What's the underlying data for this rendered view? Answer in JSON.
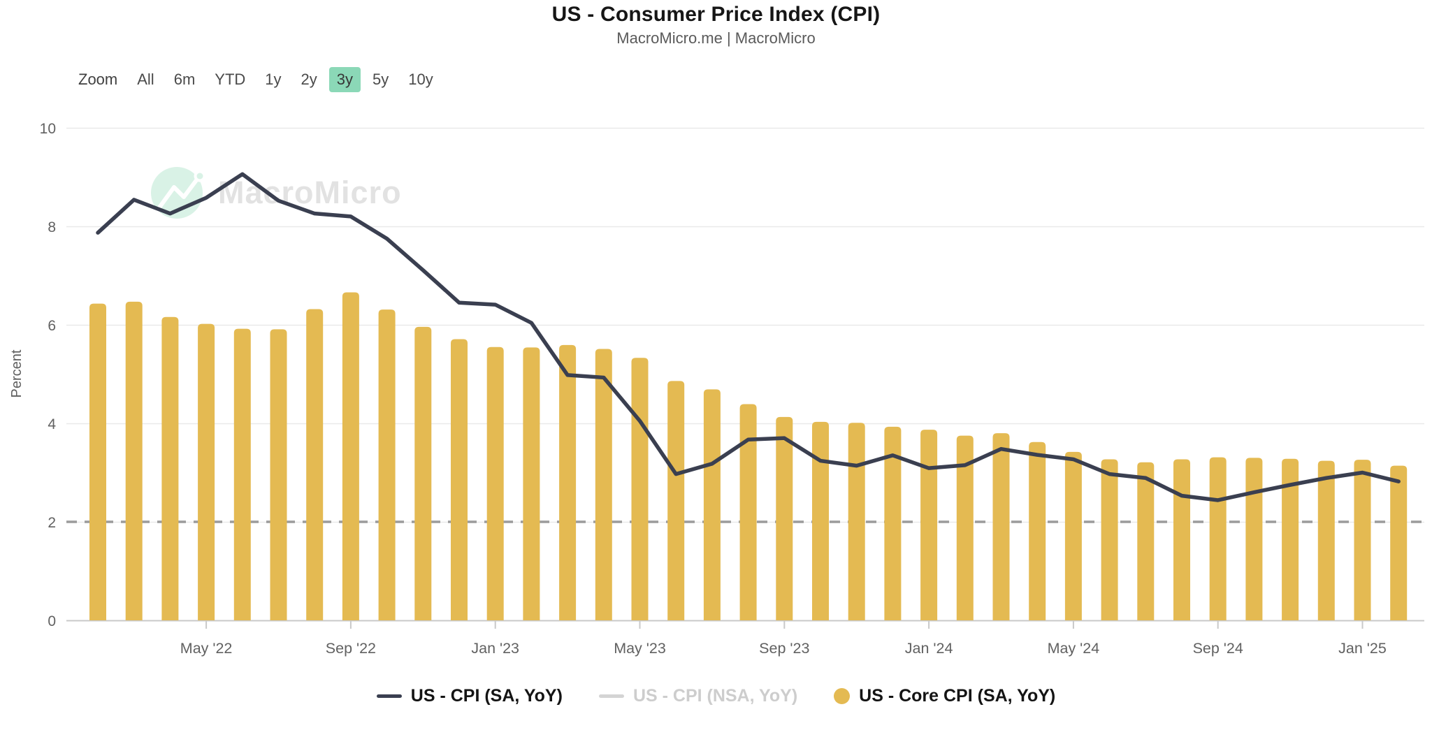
{
  "header": {
    "title": "US - Consumer Price Index (CPI)",
    "subtitle": "MacroMicro.me | MacroMicro"
  },
  "range_selector": {
    "zoom_label": "Zoom",
    "buttons": [
      "All",
      "6m",
      "YTD",
      "1y",
      "2y",
      "3y",
      "5y",
      "10y"
    ],
    "selected": "3y",
    "selected_bg_color": "#8bd8b7"
  },
  "watermark": {
    "text": "MacroMicro",
    "circle_color": "#d9f2e6",
    "text_color": "#e2e2e2"
  },
  "y_axis": {
    "title": "Percent",
    "ticks": [
      0,
      2,
      4,
      6,
      8,
      10
    ],
    "reference_line_value": 2
  },
  "x_axis": {
    "tick_labels": [
      "May '22",
      "Sep '22",
      "Jan '23",
      "May '23",
      "Sep '23",
      "Jan '24",
      "May '24",
      "Sep '24",
      "Jan '25"
    ]
  },
  "legend": [
    {
      "label": "US - CPI (SA, YoY)",
      "marker": "dash",
      "color": "#3a3f50",
      "enabled": true
    },
    {
      "label": "US - CPI (NSA, YoY)",
      "marker": "dash",
      "color": "#d4d4d4",
      "enabled": false
    },
    {
      "label": "US - Core CPI (SA, YoY)",
      "marker": "circle",
      "color": "#e4ba52",
      "enabled": true
    }
  ],
  "chart_data": {
    "type": "mixed",
    "title": "US - Consumer Price Index (CPI)",
    "ylabel": "Percent",
    "ylim": [
      0,
      10
    ],
    "grid": true,
    "reference_line": 2,
    "legend_position": "bottom",
    "categories": [
      "Feb '22",
      "Mar '22",
      "Apr '22",
      "May '22",
      "Jun '22",
      "Jul '22",
      "Aug '22",
      "Sep '22",
      "Oct '22",
      "Nov '22",
      "Dec '22",
      "Jan '23",
      "Feb '23",
      "Mar '23",
      "Apr '23",
      "May '23",
      "Jun '23",
      "Jul '23",
      "Aug '23",
      "Sep '23",
      "Oct '23",
      "Nov '23",
      "Dec '23",
      "Jan '24",
      "Feb '24",
      "Mar '24",
      "Apr '24",
      "May '24",
      "Jun '24",
      "Jul '24",
      "Aug '24",
      "Sep '24",
      "Oct '24",
      "Nov '24",
      "Dec '24",
      "Jan '25",
      "Feb '25"
    ],
    "series": [
      {
        "name": "US - CPI (SA, YoY)",
        "type": "line",
        "color": "#3a3f50",
        "visible": true,
        "values": [
          7.87,
          8.54,
          8.26,
          8.58,
          9.06,
          8.52,
          8.26,
          8.2,
          7.75,
          7.11,
          6.45,
          6.41,
          6.04,
          4.98,
          4.93,
          4.05,
          2.97,
          3.18,
          3.67,
          3.7,
          3.24,
          3.14,
          3.35,
          3.09,
          3.15,
          3.48,
          3.36,
          3.27,
          2.97,
          2.89,
          2.53,
          2.44,
          2.6,
          2.75,
          2.89,
          3.0,
          2.82
        ]
      },
      {
        "name": "US - CPI (NSA, YoY)",
        "type": "line",
        "color": "#d4d4d4",
        "visible": false,
        "values": []
      },
      {
        "name": "US - Core CPI (SA, YoY)",
        "type": "bar",
        "color": "#e4ba52",
        "visible": true,
        "values": [
          6.43,
          6.47,
          6.16,
          6.02,
          5.92,
          5.91,
          6.32,
          6.66,
          6.31,
          5.96,
          5.71,
          5.55,
          5.54,
          5.59,
          5.51,
          5.33,
          4.86,
          4.69,
          4.39,
          4.13,
          4.03,
          4.01,
          3.93,
          3.87,
          3.75,
          3.8,
          3.62,
          3.42,
          3.27,
          3.21,
          3.27,
          3.31,
          3.3,
          3.28,
          3.24,
          3.26,
          3.14
        ]
      }
    ]
  },
  "colors": {
    "grid_line": "#e9e9e9",
    "axis_line": "#c9c9c9",
    "tick_label": "#616161",
    "reference_dash": "#9b9b9b",
    "title": "#161616",
    "subtitle": "#5a5a5a"
  }
}
